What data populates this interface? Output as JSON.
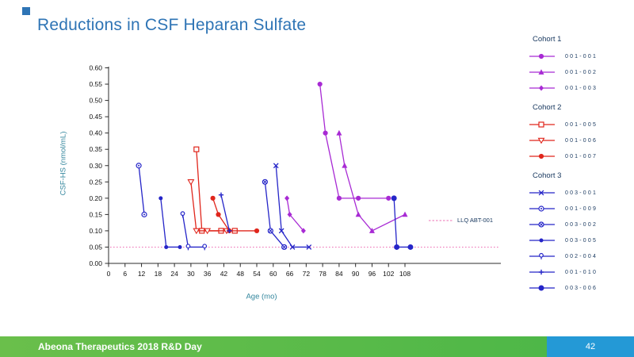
{
  "slide": {
    "title": "Reductions in CSF Heparan Sulfate",
    "footer": {
      "left": "Abeona Therapeutics 2018 R&D Day",
      "page": "42"
    },
    "colors": {
      "title_blue": "#2e74b5",
      "axis_label_teal": "#31859c",
      "legend_text_navy": "#17375e",
      "footer_green": "#4eb748",
      "footer_blue": "#2499d6"
    }
  },
  "chart_data": {
    "type": "line",
    "title": "",
    "xlabel": "Age (mo)",
    "ylabel": "CSF-HS (nmol/mL)",
    "xlim": [
      0,
      114
    ],
    "ylim": [
      0,
      0.6
    ],
    "grid": "off",
    "legend_position": "right",
    "x_ticks": [
      0,
      6,
      12,
      18,
      24,
      30,
      36,
      42,
      48,
      54,
      60,
      66,
      72,
      78,
      84,
      90,
      96,
      102,
      108
    ],
    "y_ticks": [
      "0.00",
      "0.05",
      "0.10",
      "0.15",
      "0.20",
      "0.25",
      "0.30",
      "0.35",
      "0.40",
      "0.45",
      "0.50",
      "0.55",
      "0.60"
    ],
    "llq": {
      "value": 0.05,
      "label": "LLQ ABT-001",
      "color": "#ed6fb5",
      "style": "dotted"
    },
    "groups": [
      {
        "name": "Cohort 1",
        "color": "#a82ad4",
        "series": [
          {
            "id": "001-001",
            "marker": "circle",
            "points": [
              [
                77,
                0.55
              ],
              [
                79,
                0.4
              ],
              [
                84,
                0.2
              ],
              [
                91,
                0.2
              ],
              [
                102,
                0.2
              ]
            ]
          },
          {
            "id": "001-002",
            "marker": "triangle",
            "points": [
              [
                84,
                0.4
              ],
              [
                86,
                0.3
              ],
              [
                91,
                0.15
              ],
              [
                96,
                0.1
              ],
              [
                108,
                0.15
              ]
            ]
          },
          {
            "id": "001-003",
            "marker": "diamond",
            "points": [
              [
                65,
                0.2
              ],
              [
                66,
                0.15
              ],
              [
                71,
                0.1
              ]
            ]
          }
        ]
      },
      {
        "name": "Cohort 2",
        "color": "#e0261c",
        "series": [
          {
            "id": "001-005",
            "marker": "square-open",
            "points": [
              [
                32,
                0.35
              ],
              [
                34,
                0.1
              ],
              [
                41,
                0.1
              ],
              [
                46,
                0.1
              ]
            ]
          },
          {
            "id": "001-006",
            "marker": "triangle-down-open",
            "points": [
              [
                30,
                0.25
              ],
              [
                32,
                0.1
              ],
              [
                36,
                0.1
              ],
              [
                43,
                0.1
              ]
            ]
          },
          {
            "id": "001-007",
            "marker": "circle",
            "points": [
              [
                38,
                0.2
              ],
              [
                40,
                0.15
              ],
              [
                44,
                0.1
              ],
              [
                54,
                0.1
              ]
            ]
          }
        ]
      },
      {
        "name": "Cohort 3",
        "color": "#2525c8",
        "series": [
          {
            "id": "003-001",
            "marker": "x",
            "points": [
              [
                61,
                0.3
              ],
              [
                63,
                0.1
              ],
              [
                67,
                0.05
              ],
              [
                73,
                0.05
              ]
            ]
          },
          {
            "id": "001-009",
            "marker": "circle-dot",
            "points": [
              [
                11,
                0.3
              ],
              [
                13,
                0.15
              ]
            ]
          },
          {
            "id": "003-002",
            "marker": "circle-x",
            "points": [
              [
                57,
                0.25
              ],
              [
                59,
                0.1
              ],
              [
                64,
                0.05
              ]
            ]
          },
          {
            "id": "003-005",
            "marker": "circle-small",
            "points": [
              [
                19,
                0.2
              ],
              [
                21,
                0.05
              ],
              [
                26,
                0.05
              ]
            ]
          },
          {
            "id": "002-004",
            "marker": "circle-stem",
            "points": [
              [
                27,
                0.15
              ],
              [
                29,
                0.05
              ],
              [
                35,
                0.05
              ]
            ]
          },
          {
            "id": "001-010",
            "marker": "plus",
            "points": [
              [
                41,
                0.21
              ],
              [
                44,
                0.1
              ]
            ]
          },
          {
            "id": "003-006",
            "marker": "circle-line",
            "points": [
              [
                104,
                0.2
              ],
              [
                105,
                0.05
              ],
              [
                110,
                0.05
              ]
            ]
          }
        ]
      }
    ]
  }
}
